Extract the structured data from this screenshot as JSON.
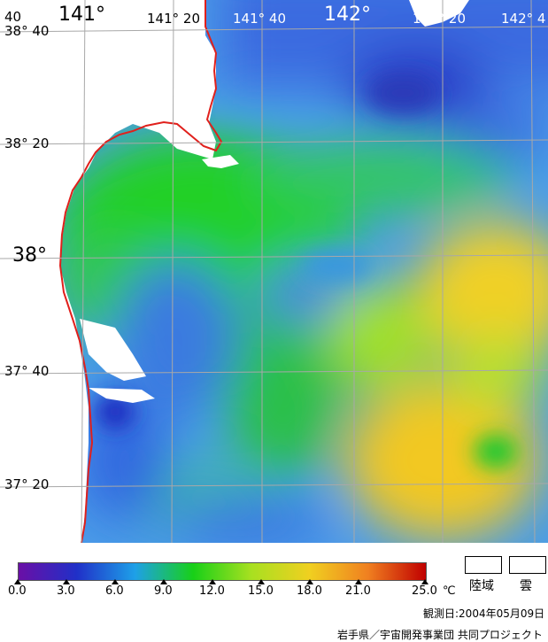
{
  "map": {
    "lon_labels": [
      "141°",
      "141° 20",
      "141° 40",
      "142°",
      "142° 20",
      "142° 4"
    ],
    "lat_labels": [
      "40",
      "38° 40",
      "38° 20",
      "38°",
      "37° 40",
      "37° 20"
    ]
  },
  "legend": {
    "ticks": [
      "0.0",
      "3.0",
      "6.0",
      "9.0",
      "12.0",
      "15.0",
      "18.0",
      "21.0",
      "25.0"
    ],
    "unit": "℃",
    "land_label": "陸域",
    "cloud_label": "雲"
  },
  "observation_date": "観測日:2004年05月09日",
  "credit": "岩手県／宇宙開発事業団  共同プロジェクト",
  "colors": {
    "coastline": "#e0201c",
    "grid": "#a8a8a8",
    "land": "#ffffff",
    "scale": [
      "#6a0fa6",
      "#2030c8",
      "#1ea0e8",
      "#18d018",
      "#a8e020",
      "#f0d020",
      "#f08020",
      "#c00000"
    ]
  }
}
